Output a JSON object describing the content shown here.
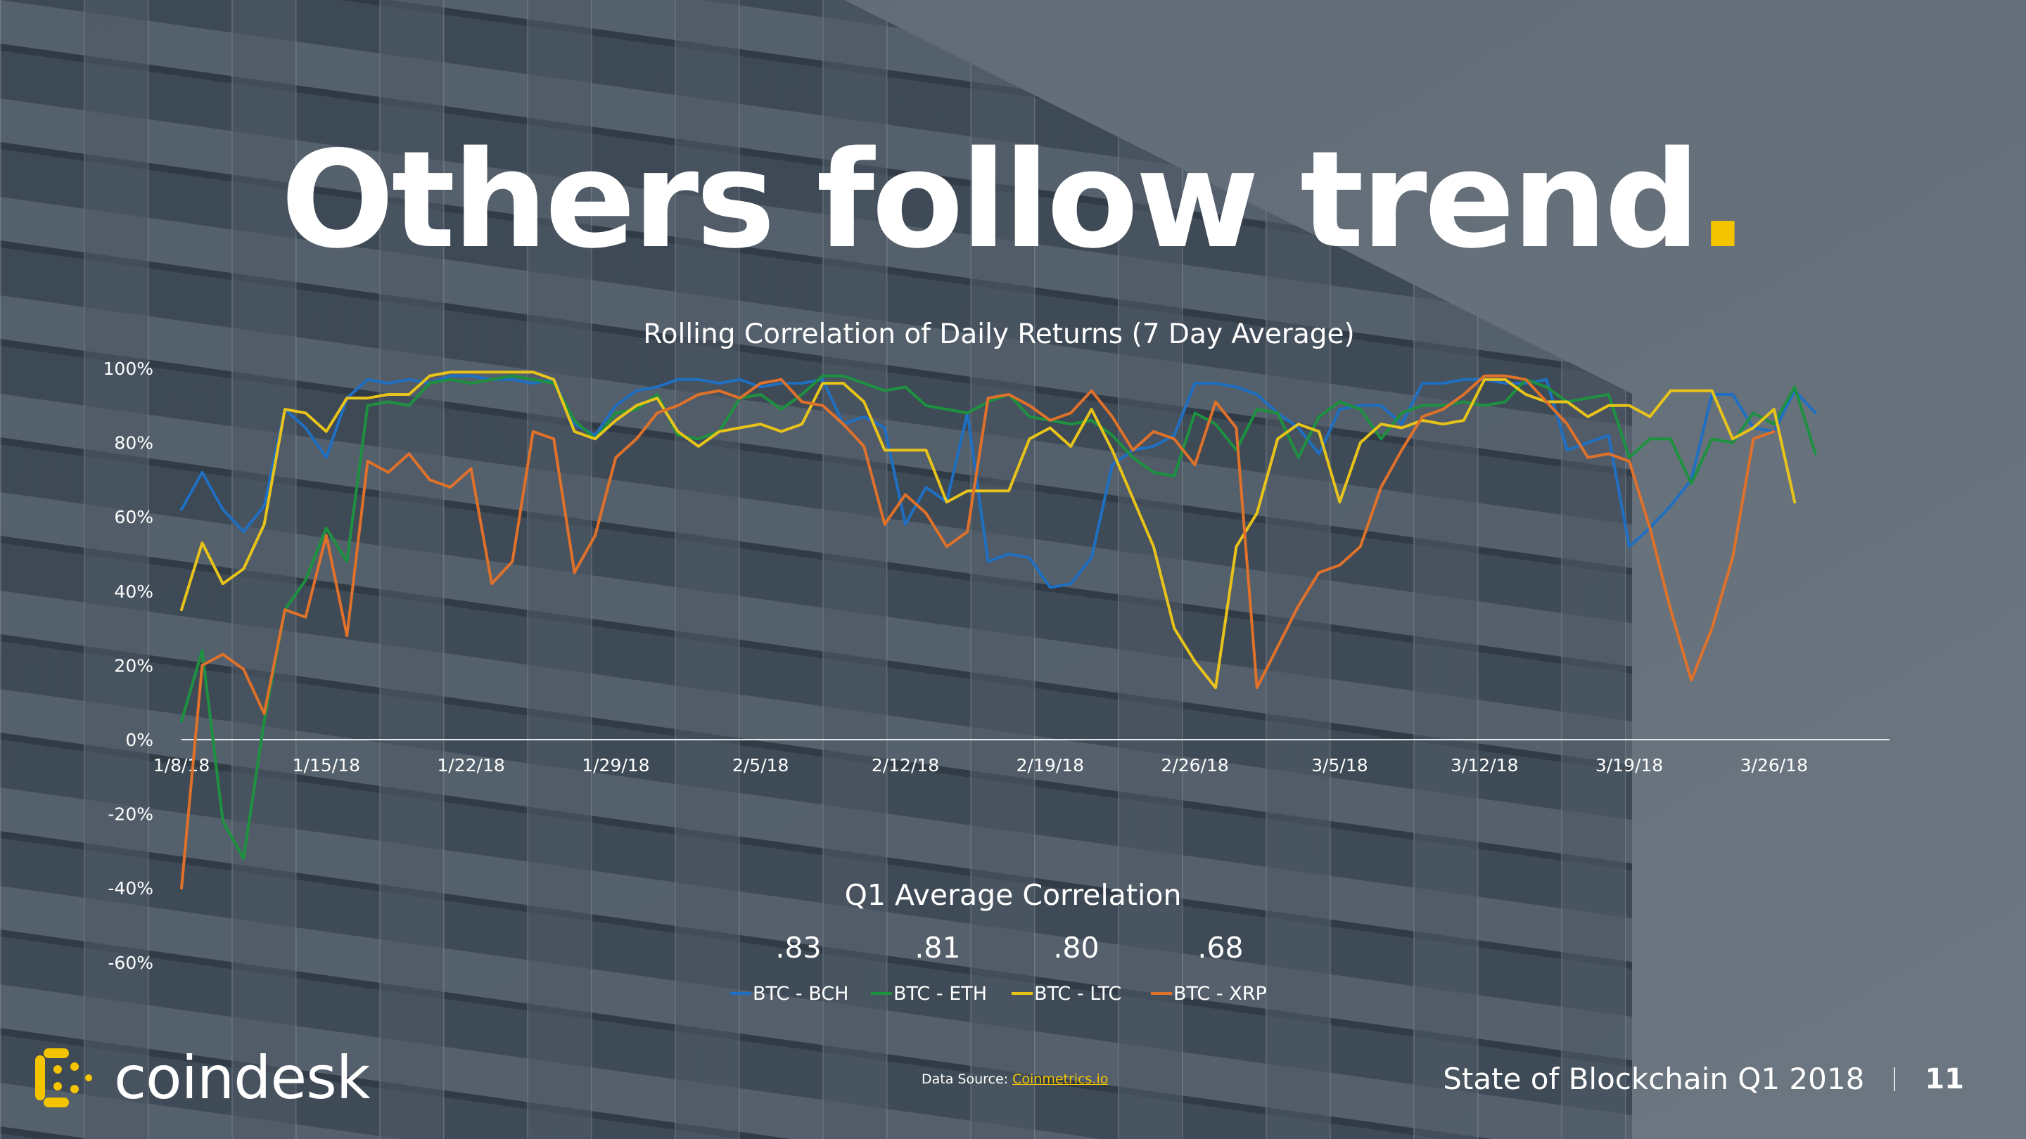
{
  "slide": {
    "title": "Others follow trend",
    "title_dot": ".",
    "brand": "coindesk",
    "footer_text": "State of Blockchain Q1 2018",
    "page_number": "11",
    "source_label": "Data Source:",
    "source_link": "Coinmetrics.io"
  },
  "colors": {
    "accent": "#f5c400",
    "text": "#ffffff",
    "axis": "#e6e9ec"
  },
  "chart_data": {
    "type": "line",
    "title": "Rolling Correlation of Daily Returns (7 Day Average)",
    "xlabel": "",
    "ylabel": "",
    "ylim": [
      -0.6,
      1.0
    ],
    "yticks": [
      1.0,
      0.8,
      0.6,
      0.4,
      0.2,
      0.0,
      -0.2,
      -0.4,
      -0.6
    ],
    "yticklabels": [
      "100%",
      "80%",
      "60%",
      "40%",
      "20%",
      "0%",
      "-20%",
      "-40%",
      "-60%"
    ],
    "xticks": [
      "1/8/18",
      "1/15/18",
      "1/22/18",
      "1/29/18",
      "2/5/18",
      "2/12/18",
      "2/19/18",
      "2/26/18",
      "3/5/18",
      "3/12/18",
      "3/19/18",
      "3/26/18"
    ],
    "x_start": "1/8/18",
    "x_end": "4/1/18",
    "grid": false,
    "legend_position": "bottom-center",
    "summary_title": "Q1 Average Correlation",
    "series": [
      {
        "name": "BTC - BCH",
        "average": ".83",
        "color": "#1f6fc2",
        "values": [
          0.62,
          0.72,
          0.62,
          0.56,
          0.63,
          0.89,
          0.84,
          0.76,
          0.92,
          0.97,
          0.96,
          0.97,
          0.96,
          0.98,
          0.98,
          0.97,
          0.97,
          0.96,
          0.97,
          0.85,
          0.82,
          0.9,
          0.94,
          0.95,
          0.97,
          0.97,
          0.96,
          0.97,
          0.95,
          0.96,
          0.96,
          0.97,
          0.85,
          0.87,
          0.84,
          0.58,
          0.68,
          0.64,
          0.88,
          0.48,
          0.5,
          0.49,
          0.41,
          0.42,
          0.49,
          0.74,
          0.78,
          0.79,
          0.82,
          0.96,
          0.96,
          0.95,
          0.93,
          0.88,
          0.84,
          0.77,
          0.89,
          0.9,
          0.9,
          0.85,
          0.96,
          0.96,
          0.97,
          0.97,
          0.96,
          0.96,
          0.97,
          0.78,
          0.8,
          0.82,
          0.52,
          0.57,
          0.63,
          0.7,
          0.93,
          0.93,
          0.84,
          0.83,
          0.94,
          0.88
        ]
      },
      {
        "name": "BTC - ETH",
        "average": ".81",
        "color": "#1e9140",
        "values": [
          0.05,
          0.24,
          -0.22,
          -0.32,
          0.05,
          0.35,
          0.43,
          0.57,
          0.48,
          0.9,
          0.91,
          0.9,
          0.96,
          0.97,
          0.96,
          0.97,
          0.98,
          0.97,
          0.96,
          0.86,
          0.81,
          0.88,
          0.89,
          0.93,
          0.82,
          0.81,
          0.83,
          0.92,
          0.93,
          0.89,
          0.93,
          0.98,
          0.98,
          0.96,
          0.94,
          0.95,
          0.9,
          0.89,
          0.88,
          0.91,
          0.93,
          0.87,
          0.86,
          0.85,
          0.86,
          0.82,
          0.76,
          0.72,
          0.71,
          0.88,
          0.85,
          0.78,
          0.89,
          0.88,
          0.76,
          0.87,
          0.91,
          0.89,
          0.81,
          0.88,
          0.9,
          0.9,
          0.91,
          0.9,
          0.91,
          0.97,
          0.95,
          0.91,
          0.92,
          0.93,
          0.76,
          0.81,
          0.81,
          0.69,
          0.81,
          0.8,
          0.88,
          0.85,
          0.95,
          0.77
        ]
      },
      {
        "name": "BTC - LTC",
        "average": ".80",
        "color": "#e8c31a",
        "values": [
          0.35,
          0.53,
          0.42,
          0.46,
          0.58,
          0.89,
          0.88,
          0.83,
          0.92,
          0.92,
          0.93,
          0.93,
          0.98,
          0.99,
          0.99,
          0.99,
          0.99,
          0.99,
          0.97,
          0.83,
          0.81,
          0.86,
          0.9,
          0.92,
          0.83,
          0.79,
          0.83,
          0.84,
          0.85,
          0.83,
          0.85,
          0.96,
          0.96,
          0.91,
          0.78,
          0.78,
          0.78,
          0.64,
          0.67,
          0.67,
          0.67,
          0.81,
          0.84,
          0.79,
          0.89,
          0.78,
          0.65,
          0.52,
          0.3,
          0.21,
          0.14,
          0.52,
          0.61,
          0.81,
          0.85,
          0.83,
          0.64,
          0.8,
          0.85,
          0.84,
          0.86,
          0.85,
          0.86,
          0.97,
          0.97,
          0.93,
          0.91,
          0.91,
          0.87,
          0.9,
          0.9,
          0.87,
          0.94,
          0.94,
          0.94,
          0.81,
          0.84,
          0.89,
          0.64
        ]
      },
      {
        "name": "BTC - XRP",
        "average": ".68",
        "color": "#e0712a",
        "values": [
          -0.4,
          0.2,
          0.23,
          0.19,
          0.07,
          0.35,
          0.33,
          0.55,
          0.28,
          0.75,
          0.72,
          0.77,
          0.7,
          0.68,
          0.73,
          0.42,
          0.48,
          0.83,
          0.81,
          0.45,
          0.55,
          0.76,
          0.81,
          0.88,
          0.9,
          0.93,
          0.94,
          0.92,
          0.96,
          0.97,
          0.91,
          0.9,
          0.85,
          0.79,
          0.58,
          0.66,
          0.61,
          0.52,
          0.56,
          0.92,
          0.93,
          0.9,
          0.86,
          0.88,
          0.94,
          0.87,
          0.78,
          0.83,
          0.81,
          0.74,
          0.91,
          0.84,
          0.14,
          0.25,
          0.36,
          0.45,
          0.47,
          0.52,
          0.68,
          0.78,
          0.87,
          0.89,
          0.93,
          0.98,
          0.98,
          0.97,
          0.91,
          0.85,
          0.76,
          0.77,
          0.75,
          0.57,
          0.35,
          0.16,
          0.3,
          0.49,
          0.81,
          0.83
        ]
      }
    ]
  }
}
